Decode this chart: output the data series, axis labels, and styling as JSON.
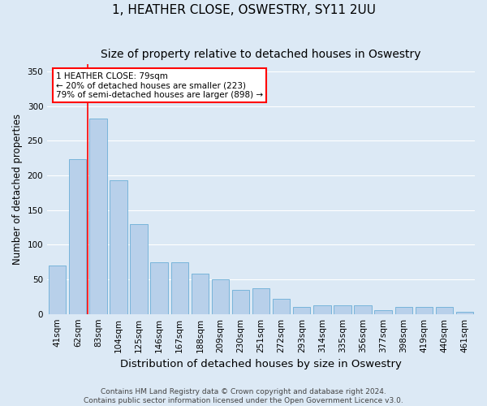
{
  "title": "1, HEATHER CLOSE, OSWESTRY, SY11 2UU",
  "subtitle": "Size of property relative to detached houses in Oswestry",
  "xlabel": "Distribution of detached houses by size in Oswestry",
  "ylabel": "Number of detached properties",
  "categories": [
    "41sqm",
    "62sqm",
    "83sqm",
    "104sqm",
    "125sqm",
    "146sqm",
    "167sqm",
    "188sqm",
    "209sqm",
    "230sqm",
    "251sqm",
    "272sqm",
    "293sqm",
    "314sqm",
    "335sqm",
    "356sqm",
    "377sqm",
    "398sqm",
    "419sqm",
    "440sqm",
    "461sqm"
  ],
  "values": [
    70,
    223,
    282,
    193,
    130,
    75,
    75,
    58,
    50,
    35,
    37,
    22,
    10,
    12,
    12,
    13,
    5,
    10,
    10,
    10,
    3
  ],
  "bar_color": "#b8d0ea",
  "bar_edge_color": "#6baed6",
  "annotation_line1": "1 HEATHER CLOSE: 79sqm",
  "annotation_line2": "← 20% of detached houses are smaller (223)",
  "annotation_line3": "79% of semi-detached houses are larger (898) →",
  "bg_color": "#dce9f5",
  "plot_bg_color": "#dce9f5",
  "grid_color": "#ffffff",
  "ylim": [
    0,
    360
  ],
  "yticks": [
    0,
    50,
    100,
    150,
    200,
    250,
    300,
    350
  ],
  "footer_line1": "Contains HM Land Registry data © Crown copyright and database right 2024.",
  "footer_line2": "Contains public sector information licensed under the Open Government Licence v3.0.",
  "title_fontsize": 11,
  "subtitle_fontsize": 10,
  "xlabel_fontsize": 9.5,
  "ylabel_fontsize": 8.5,
  "tick_fontsize": 7.5,
  "annotation_fontsize": 7.5,
  "footer_fontsize": 6.5,
  "red_line_x": 1.5
}
